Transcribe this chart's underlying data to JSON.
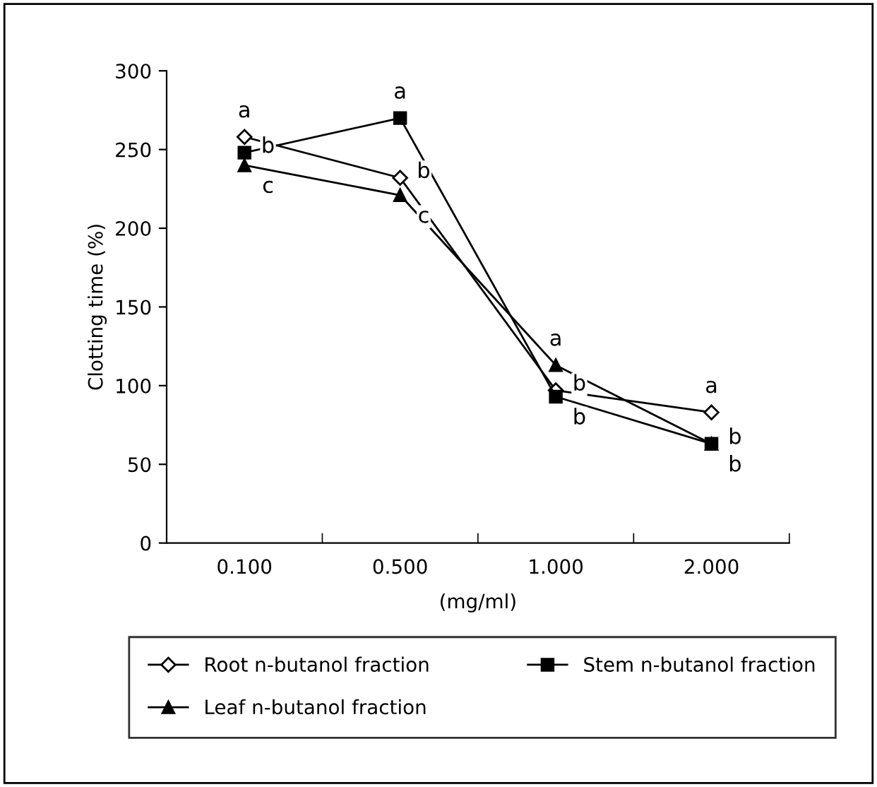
{
  "chart_data": {
    "type": "line",
    "xlabel": "(mg/ml)",
    "ylabel": "Clotting time (%)",
    "categories": [
      "0.100",
      "0.500",
      "1.000",
      "2.000"
    ],
    "ylim": [
      0,
      300
    ],
    "yticks": [
      0,
      50,
      100,
      150,
      200,
      250,
      300
    ],
    "grid": false,
    "legend": "bottom",
    "series": [
      {
        "name": "Root n-butanol fraction",
        "color": "#000000",
        "marker": "diamond",
        "values": [
          258,
          232,
          97,
          83
        ]
      },
      {
        "name": "Stem n-butanol fraction",
        "color": "#000000",
        "marker": "square",
        "values": [
          248,
          270,
          93,
          63
        ]
      },
      {
        "name": "Leaf n-butanol fraction",
        "color": "#000000",
        "marker": "triangle",
        "values": [
          240,
          221,
          113,
          63
        ]
      }
    ],
    "annotations": [
      {
        "text": "a",
        "x": "0.100",
        "y": 258
      },
      {
        "text": "b",
        "x": "0.100",
        "y": 248
      },
      {
        "text": "c",
        "x": "0.100",
        "y": 240
      },
      {
        "text": "a",
        "x": "0.500",
        "y": 270
      },
      {
        "text": "b",
        "x": "0.500",
        "y": 232
      },
      {
        "text": "c",
        "x": "0.500",
        "y": 221
      },
      {
        "text": "a",
        "x": "1.000",
        "y": 113
      },
      {
        "text": "b",
        "x": "1.000",
        "y": 97
      },
      {
        "text": "b",
        "x": "1.000",
        "y": 93
      },
      {
        "text": "a",
        "x": "2.000",
        "y": 83
      },
      {
        "text": "b",
        "x": "2.000",
        "y": 63
      },
      {
        "text": "b",
        "x": "2.000",
        "y": 63
      }
    ]
  }
}
